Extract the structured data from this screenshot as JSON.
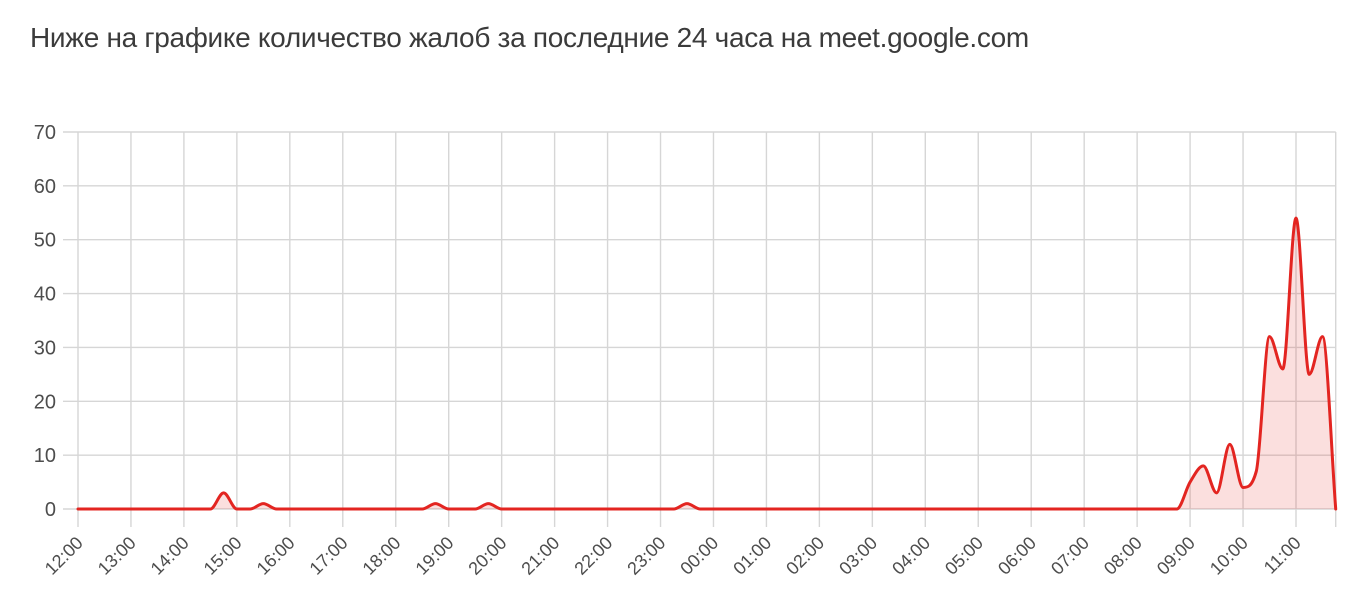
{
  "title": "Ниже на графике количество жалоб за последние 24 часа на meet.google.com",
  "chart_data": {
    "type": "area",
    "title": "Количество жалоб за последние 24 часа",
    "xlabel": "",
    "ylabel": "",
    "ylim": [
      0,
      70
    ],
    "y_ticks": [
      0,
      10,
      20,
      30,
      40,
      50,
      60,
      70
    ],
    "grid": true,
    "legend": false,
    "x_tick_labels": [
      "12:00",
      "13:00",
      "14:00",
      "15:00",
      "16:00",
      "17:00",
      "18:00",
      "19:00",
      "20:00",
      "21:00",
      "22:00",
      "23:00",
      "00:00",
      "01:00",
      "02:00",
      "03:00",
      "04:00",
      "05:00",
      "06:00",
      "07:00",
      "08:00",
      "09:00",
      "10:00",
      "11:00"
    ],
    "x_start": "12:00",
    "interval_minutes": 15,
    "values": [
      0,
      0,
      0,
      0,
      0,
      0,
      0,
      0,
      0,
      0,
      0,
      3,
      0,
      0,
      1,
      0,
      0,
      0,
      0,
      0,
      0,
      0,
      0,
      0,
      0,
      0,
      0,
      1,
      0,
      0,
      0,
      1,
      0,
      0,
      0,
      0,
      0,
      0,
      0,
      0,
      0,
      0,
      0,
      0,
      0,
      0,
      1,
      0,
      0,
      0,
      0,
      0,
      0,
      0,
      0,
      0,
      0,
      0,
      0,
      0,
      0,
      0,
      0,
      0,
      0,
      0,
      0,
      0,
      0,
      0,
      0,
      0,
      0,
      0,
      0,
      0,
      0,
      0,
      0,
      0,
      0,
      0,
      0,
      0,
      5,
      8,
      3,
      12,
      4,
      7,
      32,
      26,
      54,
      25,
      32,
      0
    ],
    "notable_points": [
      {
        "time": "14:45",
        "value": 3
      },
      {
        "time": "15:30",
        "value": 1
      },
      {
        "time": "18:45",
        "value": 1
      },
      {
        "time": "19:45",
        "value": 1
      },
      {
        "time": "23:30",
        "value": 1
      },
      {
        "time": "09:15",
        "value": 8
      },
      {
        "time": "09:45",
        "value": 12
      },
      {
        "time": "10:30",
        "value": 32
      },
      {
        "time": "11:00",
        "value": 54
      },
      {
        "time": "11:30",
        "value": 32
      }
    ],
    "colors": {
      "line": "#e32521",
      "fill": "rgba(227, 37, 33, 0.15)",
      "grid": "#d6d6d6",
      "axis_text": "#4d4d4d",
      "title_text": "#3b3b3b",
      "background": "#ffffff"
    }
  }
}
